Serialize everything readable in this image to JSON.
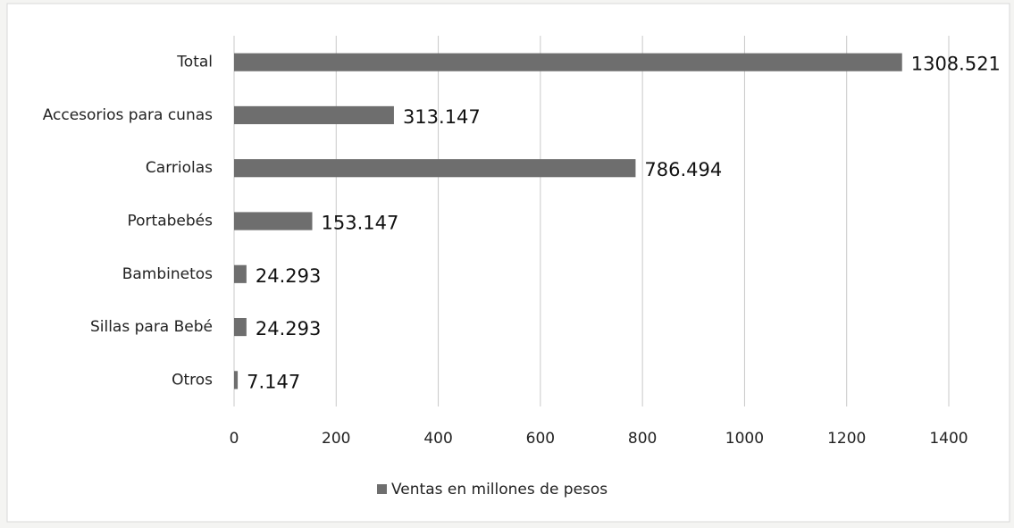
{
  "chart_data": {
    "type": "hbar",
    "categories": [
      "Total",
      "Accesorios para cunas",
      "Carriolas",
      "Portabebés",
      "Bambinetos",
      "Sillas para Bebé",
      "Otros"
    ],
    "series": [
      {
        "name": "Ventas en millones de pesos",
        "color": "#6e6e6e",
        "values": [
          1308.521,
          313.147,
          786.494,
          153.147,
          24.293,
          24.293,
          7.147
        ]
      }
    ],
    "xlim": [
      0,
      1400
    ],
    "xticks": [
      0,
      200,
      400,
      600,
      800,
      1000,
      1200,
      1400
    ],
    "grid": true,
    "legend": "bottom"
  }
}
